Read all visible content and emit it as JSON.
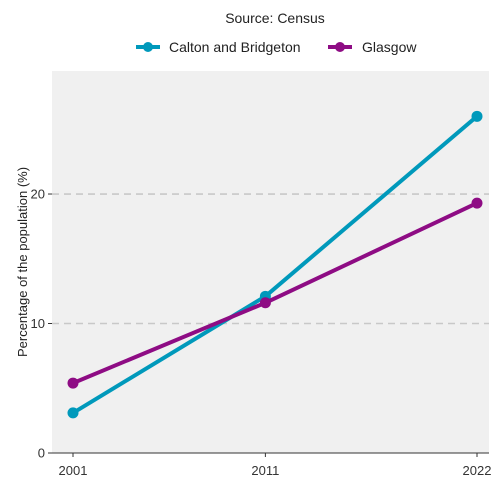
{
  "subtitle": "Source: Census",
  "chart_data": {
    "type": "line",
    "x": [
      2001,
      2011,
      2022
    ],
    "x_tick_labels": [
      "2001",
      "2011",
      "2022"
    ],
    "series": [
      {
        "name": "Calton and Bridgeton",
        "values": [
          3.1,
          12.1,
          26.0
        ],
        "color": "#0099bb"
      },
      {
        "name": "Glasgow",
        "values": [
          5.4,
          11.6,
          19.3
        ],
        "color": "#8e0c84"
      }
    ],
    "ylabel": "Percentage of the population (%)",
    "xlabel": "",
    "y_ticks": [
      0,
      10,
      20
    ],
    "ylim": [
      0,
      29.5
    ],
    "grid": "horizontal dashed",
    "legend_position": "top",
    "panel_background": "#f0f0f0",
    "grid_color": "#c8c8c8"
  }
}
